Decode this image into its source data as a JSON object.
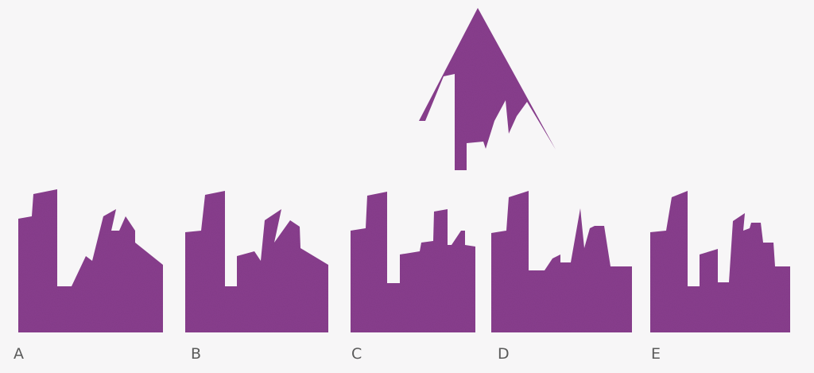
{
  "colors": {
    "shape_fill": "#8a3f8f",
    "background": "#f7f6f7",
    "label_text": "#5a5a5a"
  },
  "puzzle": {
    "type": "shape completion",
    "target": "triangle-with-cutout",
    "options": [
      {
        "letter": "A"
      },
      {
        "letter": "B"
      },
      {
        "letter": "C"
      },
      {
        "letter": "D"
      },
      {
        "letter": "E"
      }
    ]
  }
}
